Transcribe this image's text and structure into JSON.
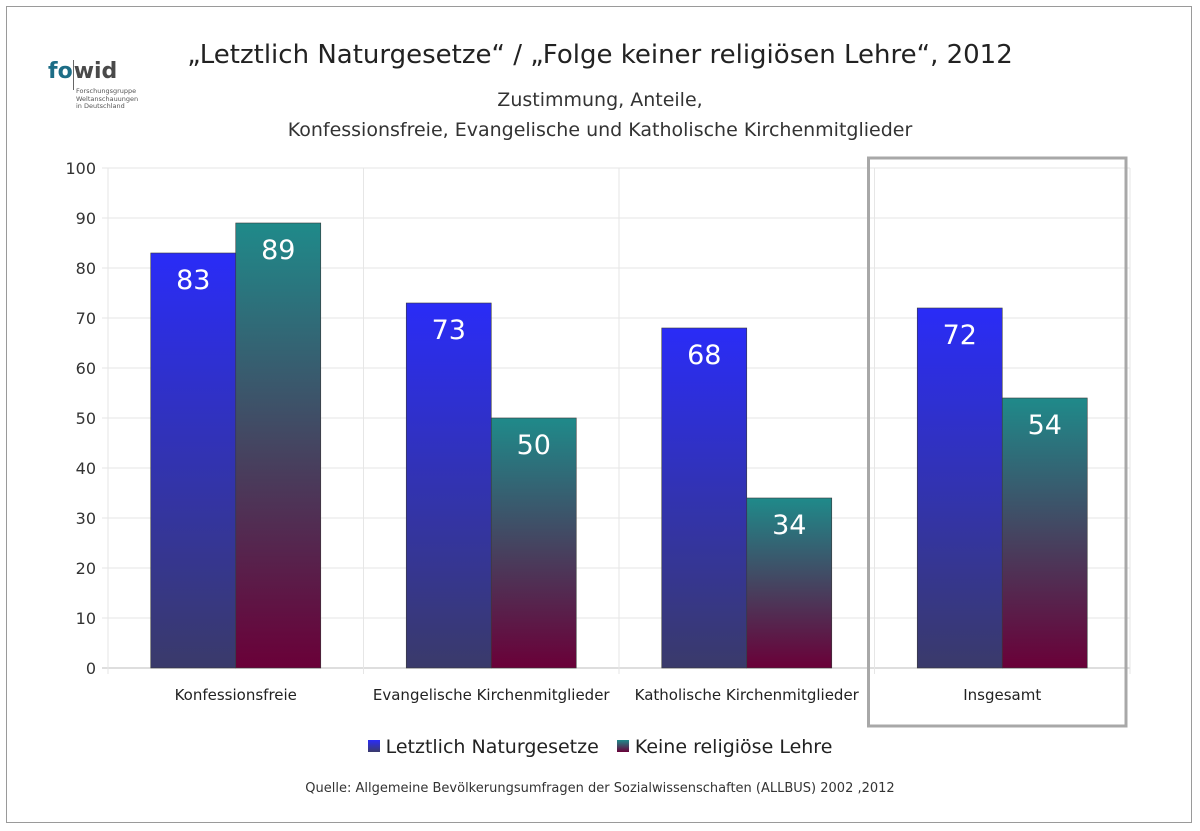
{
  "logo": {
    "text_fo": "fo",
    "text_wid": "wid",
    "tagline": [
      "Forschungsgruppe",
      "Weltanschauungen",
      "in Deutschland"
    ]
  },
  "chart_data": {
    "type": "bar",
    "title": "„Letztlich Naturgesetze“ / „Folge keiner religiösen Lehre“, 2012",
    "subtitle": [
      "Zustimmung, Anteile,",
      "Konfessionsfreie, Evangelische und Katholische Kirchenmitglieder"
    ],
    "categories": [
      "Konfessionsfreie",
      "Evangelische Kirchenmitglieder",
      "Katholische Kirchenmitglieder",
      "Insgesamt"
    ],
    "series": [
      {
        "name": "Letztlich Naturgesetze",
        "values": [
          83,
          73,
          68,
          72
        ],
        "color_top": "#2a2cf7",
        "color_bottom": "#3a3a6a"
      },
      {
        "name": "Keine religiöse Lehre",
        "values": [
          89,
          50,
          34,
          54
        ],
        "color_top": "#1f8a8a",
        "color_bottom": "#6a0038"
      }
    ],
    "ylim": [
      0,
      100
    ],
    "yticks": [
      0,
      10,
      20,
      30,
      40,
      50,
      60,
      70,
      80,
      90,
      100
    ],
    "grid": true,
    "legend_position": "bottom",
    "highlight_category": "Insgesamt",
    "data_label_color": "#ffffff"
  },
  "source": "Quelle: Allgemeine Bevölkerungsumfragen der Sozialwissenschaften (ALLBUS) 2002 ,2012"
}
